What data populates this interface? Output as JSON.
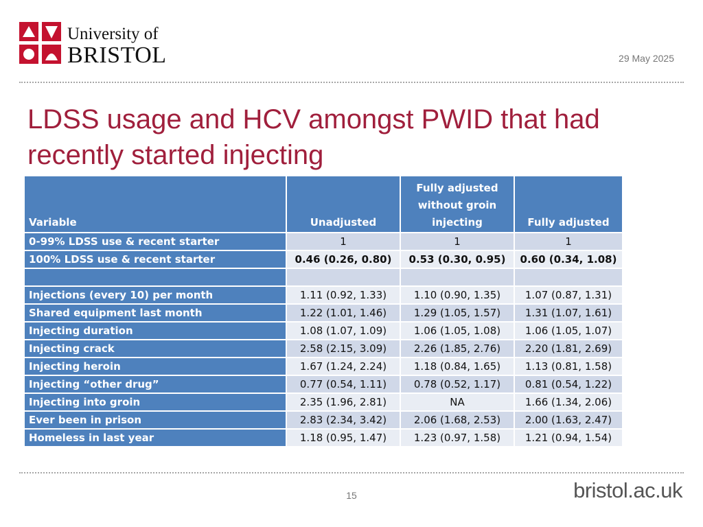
{
  "header": {
    "logo": {
      "line1": "University of",
      "line2": "BRISTOL"
    },
    "date": "29 May 2025"
  },
  "title": "LDSS usage and HCV amongst PWID that had recently started injecting",
  "table": {
    "headers": [
      "Variable",
      "Unadjusted",
      "Fully adjusted without groin injecting",
      "Fully adjusted"
    ],
    "rows": [
      {
        "label": "0-99% LDSS use & recent starter",
        "values": [
          "1",
          "1",
          "1"
        ]
      },
      {
        "label": "100% LDSS use & recent starter",
        "values": [
          "0.46 (0.26, 0.80)",
          "0.53 (0.30, 0.95)",
          "0.60 (0.34, 1.08)"
        ]
      },
      {
        "label": "",
        "values": [
          "",
          "",
          ""
        ]
      },
      {
        "label": "Injections (every 10) per month",
        "values": [
          "1.11 (0.92, 1.33)",
          "1.10 (0.90, 1.35)",
          "1.07 (0.87, 1.31)"
        ]
      },
      {
        "label": "Shared equipment last month",
        "values": [
          "1.22 (1.01, 1.46)",
          "1.29 (1.05, 1.57)",
          "1.31 (1.07, 1.61)"
        ]
      },
      {
        "label": "Injecting duration",
        "values": [
          "1.08 (1.07, 1.09)",
          "1.06 (1.05, 1.08)",
          "1.06 (1.05, 1.07)"
        ]
      },
      {
        "label": "Injecting crack",
        "values": [
          "2.58 (2.15, 3.09)",
          "2.26 (1.85, 2.76)",
          "2.20 (1.81, 2.69)"
        ]
      },
      {
        "label": "Injecting heroin",
        "values": [
          "1.67 (1.24, 2.24)",
          "1.18 (0.84, 1.65)",
          "1.13 (0.81, 1.58)"
        ]
      },
      {
        "label": "Injecting “other drug”",
        "values": [
          "0.77 (0.54, 1.11)",
          "0.78 (0.52, 1.17)",
          "0.81 (0.54, 1.22)"
        ]
      },
      {
        "label": "Injecting into groin",
        "values": [
          "2.35 (1.96, 2.81)",
          "NA",
          "1.66 (1.34, 2.06)"
        ]
      },
      {
        "label": "Ever been in prison",
        "values": [
          "2.83 (2.34, 3.42)",
          "2.06 (1.68, 2.53)",
          "2.00 (1.63, 2.47)"
        ]
      },
      {
        "label": "Homeless in last year",
        "values": [
          "1.18 (0.95, 1.47)",
          "1.23 (0.97, 1.58)",
          "1.21 (0.94, 1.54)"
        ]
      }
    ]
  },
  "footer": {
    "page_number": "15",
    "url": "bristol.ac.uk"
  },
  "colors": {
    "title": "#a01f3c",
    "header_fill": "#4e81bd",
    "row_fill": "#d0d8e8",
    "row_fill_alt": "#e9edf4",
    "highlight": "#ffff00"
  }
}
